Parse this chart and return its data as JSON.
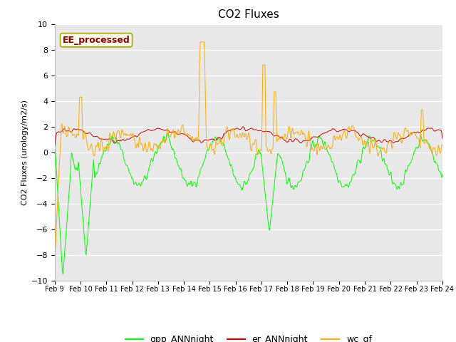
{
  "title": "CO2 Fluxes",
  "ylabel": "CO2 Fluxes (urology/m2/s)",
  "xlabel": "",
  "ylim": [
    -10,
    10
  ],
  "background_color": "#e8e8e8",
  "figure_color": "#ffffff",
  "annotation_text": "EE_processed",
  "annotation_color": "#8B0000",
  "annotation_bg": "#ffffee",
  "annotation_border": "#aaaa00",
  "legend_entries": [
    "gpp_ANNnight",
    "er_ANNnight",
    "wc_gf"
  ],
  "line_colors": [
    "#00ff00",
    "#cc0000",
    "#ffaa00"
  ],
  "xtick_labels": [
    "Feb 9",
    "Feb 10",
    "Feb 11",
    "Feb 12",
    "Feb 13",
    "Feb 14",
    "Feb 15",
    "Feb 16",
    "Feb 17",
    "Feb 18",
    "Feb 19",
    "Feb 20",
    "Feb 21",
    "Feb 22",
    "Feb 23",
    "Feb 24"
  ],
  "n_points": 720,
  "seed": 42
}
